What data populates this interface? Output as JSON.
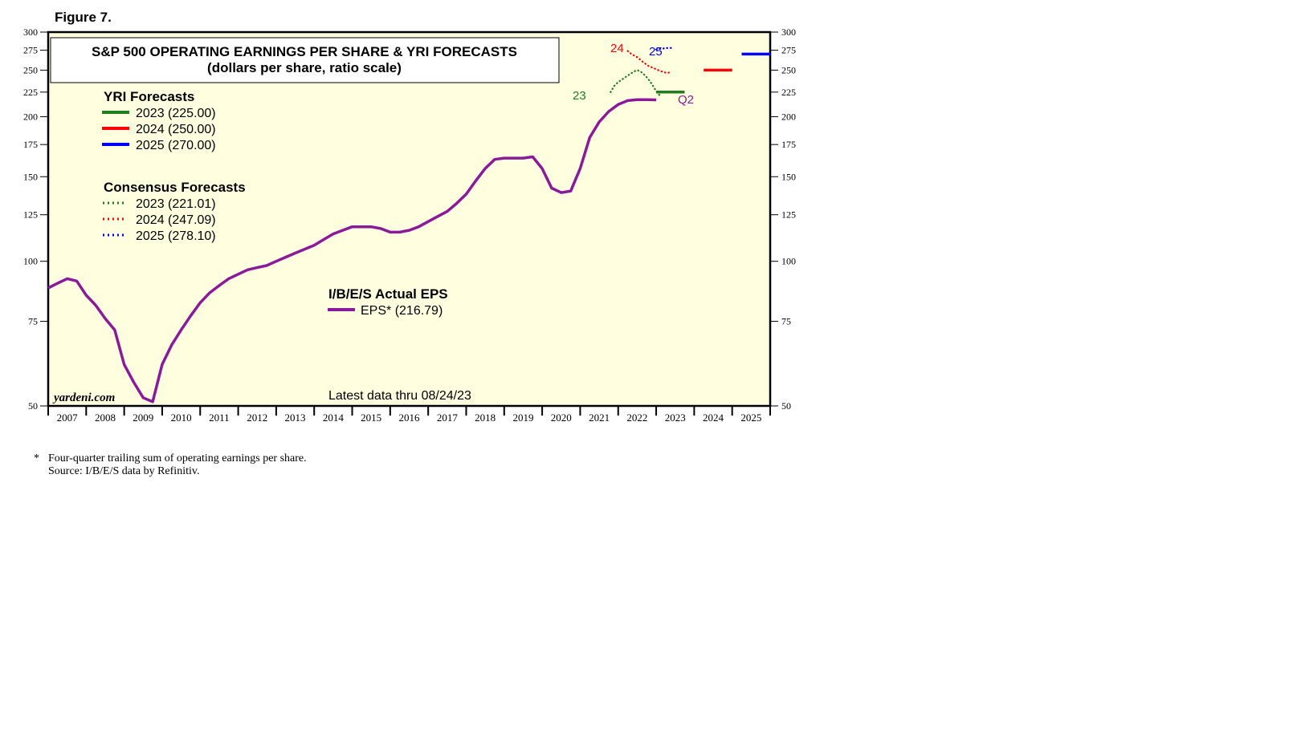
{
  "figure_label": "Figure 7.",
  "footnote": {
    "marker": "*",
    "line1": "Four-quarter trailing sum of operating earnings per share.",
    "line2": "Source: I/B/E/S data by Refinitiv."
  },
  "chart_data": {
    "type": "line",
    "title": "S&P 500 OPERATING EARNINGS PER SHARE & YRI FORECASTS",
    "subtitle": "(dollars per share, ratio scale)",
    "y_scale": "log",
    "ylim": [
      50,
      300
    ],
    "y_ticks": [
      50,
      75,
      100,
      125,
      150,
      175,
      200,
      225,
      250,
      275,
      300
    ],
    "x_range": [
      2007,
      2026
    ],
    "x_labels": [
      "2007",
      "2008",
      "2009",
      "2010",
      "2011",
      "2012",
      "2013",
      "2014",
      "2015",
      "2016",
      "2017",
      "2018",
      "2019",
      "2020",
      "2021",
      "2022",
      "2023",
      "2024",
      "2025"
    ],
    "grid": false,
    "background": "#ffffe0",
    "colors": {
      "eps": "#8b1a9a",
      "y2023": "#1e7d1e",
      "y2024": "#ff0000",
      "y2025": "#0000ff"
    },
    "legends": {
      "yri": {
        "heading": "YRI Forecasts",
        "entries": [
          {
            "label": "2023 (225.00)",
            "color": "#1e7d1e",
            "style": "solid"
          },
          {
            "label": "2024 (250.00)",
            "color": "#ff0000",
            "style": "solid"
          },
          {
            "label": "2025 (270.00)",
            "color": "#0000ff",
            "style": "solid"
          }
        ]
      },
      "consensus": {
        "heading": "Consensus Forecasts",
        "entries": [
          {
            "label": "2023 (221.01)",
            "color": "#1e7d1e",
            "style": "dotted"
          },
          {
            "label": "2024 (247.09)",
            "color": "#ff0000",
            "style": "dotted"
          },
          {
            "label": "2025 (278.10)",
            "color": "#0000ff",
            "style": "dotted"
          }
        ]
      },
      "actual": {
        "heading": "I/B/E/S Actual EPS",
        "entries": [
          {
            "label": "EPS* (216.79)",
            "color": "#8b1a9a",
            "style": "solid"
          }
        ]
      }
    },
    "annotations": {
      "source": "yardeni.com",
      "latest": "Latest data thru 08/24/23",
      "label_23": "23",
      "label_24": "24",
      "label_25": "25",
      "label_q2": "Q2"
    },
    "series": [
      {
        "name": "EPS* (216.79)",
        "style": "solid",
        "x": [
          2007.0,
          2007.25,
          2007.5,
          2007.75,
          2008.0,
          2008.25,
          2008.5,
          2008.75,
          2009.0,
          2009.25,
          2009.5,
          2009.75,
          2010.0,
          2010.25,
          2010.5,
          2010.75,
          2011.0,
          2011.25,
          2011.5,
          2011.75,
          2012.0,
          2012.25,
          2012.5,
          2012.75,
          2013.0,
          2013.25,
          2013.5,
          2013.75,
          2014.0,
          2014.25,
          2014.5,
          2014.75,
          2015.0,
          2015.25,
          2015.5,
          2015.75,
          2016.0,
          2016.25,
          2016.5,
          2016.75,
          2017.0,
          2017.25,
          2017.5,
          2017.75,
          2018.0,
          2018.25,
          2018.5,
          2018.75,
          2019.0,
          2019.25,
          2019.5,
          2019.75,
          2020.0,
          2020.25,
          2020.5,
          2020.75,
          2021.0,
          2021.25,
          2021.5,
          2021.75,
          2022.0,
          2022.25,
          2022.5,
          2022.75,
          2023.0
        ],
        "values": [
          88,
          90,
          92,
          91,
          85,
          81,
          76,
          72,
          61,
          56,
          52,
          51,
          61,
          67,
          72,
          77,
          82,
          86,
          89,
          92,
          94,
          96,
          97,
          98,
          100,
          102,
          104,
          106,
          108,
          111,
          114,
          116,
          118,
          118,
          118,
          117,
          115,
          115,
          116,
          118,
          121,
          124,
          127,
          132,
          138,
          147,
          156,
          163,
          164,
          164,
          164,
          165,
          156,
          142,
          139,
          140,
          156,
          181,
          195,
          205,
          212,
          216,
          217,
          217,
          216.79
        ]
      },
      {
        "name": "2023 (221.01)",
        "style": "dotted",
        "x": [
          2021.8,
          2021.9,
          2022.0,
          2022.1,
          2022.2,
          2022.3,
          2022.4,
          2022.5,
          2022.6,
          2022.7,
          2022.8,
          2022.9,
          2023.0,
          2023.1
        ],
        "values": [
          225,
          232,
          236,
          239,
          242,
          245,
          248,
          250,
          248,
          244,
          239,
          233,
          226,
          221.01
        ]
      },
      {
        "name": "2024 (247.09)",
        "style": "dotted",
        "x": [
          2022.25,
          2022.35,
          2022.5,
          2022.65,
          2022.8,
          2022.95,
          2023.1,
          2023.25,
          2023.4
        ],
        "values": [
          274,
          270,
          266,
          260,
          255,
          252,
          249,
          247,
          247.09
        ]
      },
      {
        "name": "2025 (278.10)",
        "style": "dotted",
        "x": [
          2023.0,
          2023.15,
          2023.3,
          2023.45
        ],
        "values": [
          276,
          277,
          278,
          278.1
        ]
      },
      {
        "name": "2023 (225.00)",
        "style": "solid",
        "x": [
          2023.0,
          2023.75
        ],
        "values": [
          225,
          225
        ]
      },
      {
        "name": "2024 (250.00)",
        "style": "solid",
        "x": [
          2024.25,
          2025.0
        ],
        "values": [
          250,
          250
        ]
      },
      {
        "name": "2025 (270.00)",
        "style": "solid",
        "x": [
          2025.25,
          2026.0
        ],
        "values": [
          270,
          270
        ]
      }
    ]
  }
}
